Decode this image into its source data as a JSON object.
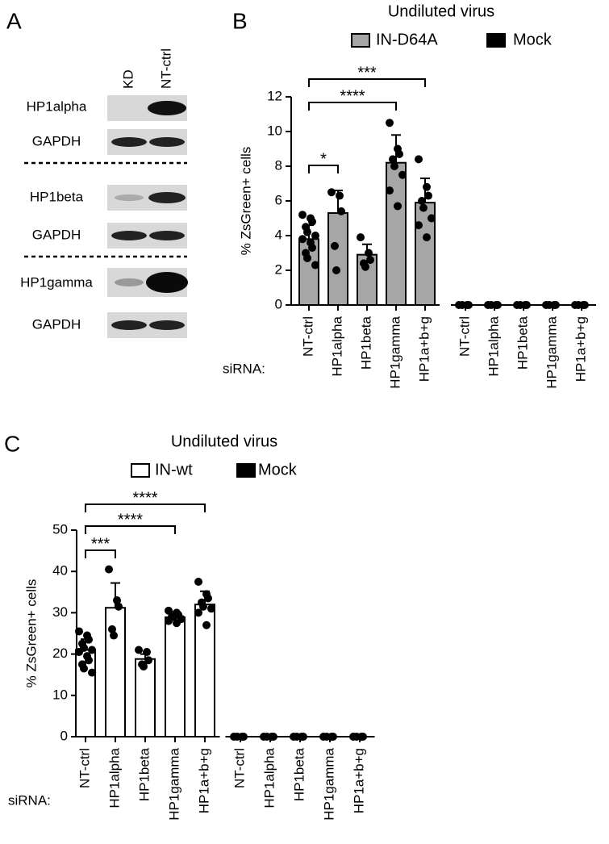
{
  "panel_labels": [
    "A",
    "B",
    "C"
  ],
  "blot": {
    "columns": [
      "KD",
      "NT-ctrl"
    ],
    "rows": [
      "HP1alpha",
      "GAPDH",
      "HP1beta",
      "GAPDH",
      "HP1gamma",
      "GAPDH"
    ]
  },
  "chart_data": [
    {
      "type": "bar",
      "title": "Undiluted virus",
      "ylabel": "% ZsGreen+ cells",
      "xlabel": "siRNA:",
      "categories": [
        "NT-ctrl",
        "HP1alpha",
        "HP1beta",
        "HP1gamma",
        "HP1a+b+g",
        "NT-ctrl",
        "HP1alpha",
        "HP1beta",
        "HP1gamma",
        "HP1a+b+g"
      ],
      "ylim": [
        0,
        12
      ],
      "yticks": [
        0,
        2,
        4,
        6,
        8,
        10,
        12
      ],
      "legend": "top",
      "series": [
        {
          "name": "IN-D64A",
          "color": "#a6a6a6",
          "values": [
            3.8,
            5.3,
            2.9,
            8.2,
            5.9,
            null,
            null,
            null,
            null,
            null
          ],
          "errors": [
            0.8,
            1.3,
            0.6,
            1.6,
            1.4,
            null,
            null,
            null,
            null,
            null
          ],
          "points": [
            [
              5.2,
              5.0,
              4.8,
              4.5,
              4.2,
              4.0,
              3.8,
              3.6,
              3.3,
              3.0,
              2.7,
              2.3
            ],
            [
              6.5,
              6.3,
              5.4,
              3.4,
              2.0
            ],
            [
              3.9,
              3.0,
              2.6,
              2.4,
              2.2
            ],
            [
              10.5,
              9.0,
              8.7,
              8.4,
              8.0,
              7.5,
              6.6,
              5.7
            ],
            [
              8.4,
              6.8,
              6.3,
              6.0,
              5.6,
              5.0,
              4.6,
              3.9
            ],
            null,
            null,
            null,
            null,
            null
          ]
        },
        {
          "name": "Mock",
          "color": "#000000",
          "values": [
            null,
            null,
            null,
            null,
            null,
            0,
            0,
            0,
            0,
            0
          ],
          "errors": [
            null,
            null,
            null,
            null,
            null,
            0,
            0,
            0,
            0,
            0
          ],
          "points": [
            null,
            null,
            null,
            null,
            null,
            [
              0,
              0,
              0,
              0
            ],
            [
              0,
              0,
              0,
              0
            ],
            [
              0,
              0,
              0,
              0
            ],
            [
              0,
              0,
              0,
              0
            ],
            [
              0,
              0,
              0,
              0
            ]
          ]
        }
      ],
      "annotations": [
        {
          "between": [
            "NT-ctrl",
            "HP1alpha"
          ],
          "label": "*"
        },
        {
          "between": [
            "NT-ctrl",
            "HP1gamma"
          ],
          "label": "****"
        },
        {
          "between": [
            "NT-ctrl",
            "HP1a+b+g"
          ],
          "label": "***"
        }
      ]
    },
    {
      "type": "bar",
      "title": "Undiluted virus",
      "ylabel": "% ZsGreen+ cells",
      "xlabel": "siRNA:",
      "categories": [
        "NT-ctrl",
        "HP1alpha",
        "HP1beta",
        "HP1gamma",
        "HP1a+b+g",
        "NT-ctrl",
        "HP1alpha",
        "HP1beta",
        "HP1gamma",
        "HP1a+b+g"
      ],
      "ylim": [
        0,
        50
      ],
      "yticks": [
        0,
        10,
        20,
        30,
        40,
        50
      ],
      "legend": "top",
      "series": [
        {
          "name": "IN-wt",
          "color": "#ffffff",
          "values": [
            21,
            31.2,
            18.8,
            28.9,
            32,
            null,
            null,
            null,
            null,
            null
          ],
          "errors": [
            2.6,
            6.0,
            1.2,
            1.3,
            3.2,
            null,
            null,
            null,
            null,
            null
          ],
          "points": [
            [
              25.5,
              24.5,
              23.5,
              22.5,
              21.5,
              21,
              20.5,
              19.5,
              18.5,
              17.5,
              16.5,
              15.5
            ],
            [
              40.5,
              33,
              31.5,
              26,
              24.5
            ],
            [
              21,
              20.5,
              18.5,
              17.5,
              17
            ],
            [
              30.5,
              30,
              29.5,
              29,
              29,
              28.5,
              28,
              27.5
            ],
            [
              37.5,
              34.5,
              33.5,
              32.5,
              31.5,
              31,
              30,
              27
            ],
            null,
            null,
            null,
            null,
            null
          ]
        },
        {
          "name": "Mock",
          "color": "#000000",
          "values": [
            null,
            null,
            null,
            null,
            null,
            0,
            0,
            0,
            0,
            0
          ],
          "errors": [
            null,
            null,
            null,
            null,
            null,
            0,
            0,
            0,
            0,
            0
          ],
          "points": [
            null,
            null,
            null,
            null,
            null,
            [
              0,
              0,
              0,
              0
            ],
            [
              0,
              0,
              0,
              0
            ],
            [
              0,
              0,
              0,
              0
            ],
            [
              0,
              0,
              0,
              0
            ],
            [
              0,
              0,
              0,
              0
            ]
          ]
        }
      ],
      "annotations": [
        {
          "between": [
            "NT-ctrl",
            "HP1alpha"
          ],
          "label": "***"
        },
        {
          "between": [
            "NT-ctrl",
            "HP1gamma"
          ],
          "label": "****"
        },
        {
          "between": [
            "NT-ctrl",
            "HP1a+b+g"
          ],
          "label": "****"
        }
      ]
    }
  ]
}
